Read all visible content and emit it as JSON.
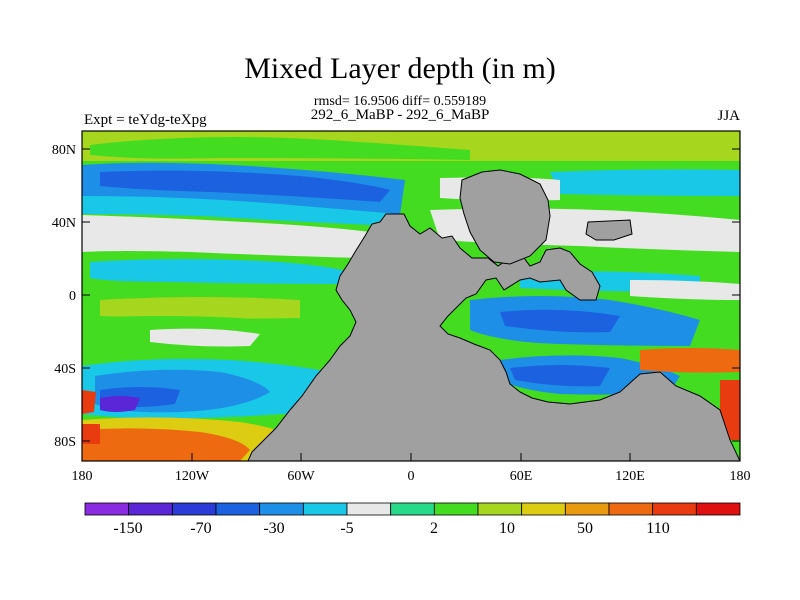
{
  "map": {
    "title": "Mixed Layer depth (in m)",
    "stats_line": "rmsd= 16.9506 diff= 0.559189",
    "subtitle": "292_6_MaBP - 292_6_MaBP",
    "left_note": "Expt = teYdg-teXpg",
    "right_note": "JJA",
    "lat_labels": [
      "80N",
      "40N",
      "0",
      "40S",
      "80S"
    ],
    "lon_labels": [
      "180",
      "120W",
      "60W",
      "0",
      "60E",
      "120E",
      "180"
    ],
    "land_color": "#a0a0a0",
    "missing_color": "#e8e8e8"
  },
  "colorbar": {
    "labels": [
      "-150",
      "-70",
      "-30",
      "-5",
      "2",
      "10",
      "50",
      "110"
    ],
    "colors": [
      "#8a2be2",
      "#5a26d6",
      "#2a3bd8",
      "#1c62e0",
      "#1e8fe6",
      "#18c8e6",
      "#e8e8e8",
      "#28d98a",
      "#44dc20",
      "#a6d61e",
      "#dccc12",
      "#e89a10",
      "#ee6a10",
      "#e83c10",
      "#e01010"
    ]
  }
}
